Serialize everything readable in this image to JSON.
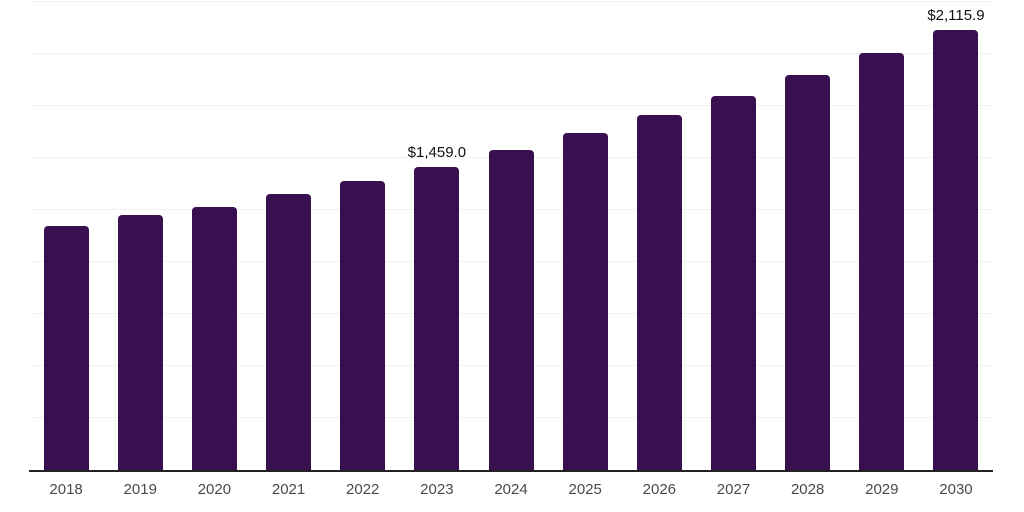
{
  "chart_data": {
    "type": "bar",
    "title": "",
    "xlabel": "",
    "ylabel": "",
    "categories": [
      "2018",
      "2019",
      "2020",
      "2021",
      "2022",
      "2023",
      "2024",
      "2025",
      "2026",
      "2027",
      "2028",
      "2029",
      "2030"
    ],
    "values": [
      1171.0,
      1226.0,
      1265.0,
      1327.0,
      1389.0,
      1459.0,
      1538.0,
      1620.0,
      1706.0,
      1797.0,
      1898.0,
      2004.0,
      2115.9
    ],
    "data_labels": [
      "",
      "",
      "",
      "",
      "",
      "$1,459.0",
      "",
      "",
      "",
      "",
      "",
      "",
      "$2,115.9"
    ],
    "ylim": [
      0,
      2250
    ],
    "gridline_step": 250,
    "grid": "horizontal",
    "legend": "none",
    "colors": {
      "bar": "#39104F",
      "gridline": "#F0F0F0",
      "axis_line": "#222222",
      "tick_label": "#4A4A4A",
      "data_label": "#111111",
      "background": "#FFFFFF"
    }
  }
}
